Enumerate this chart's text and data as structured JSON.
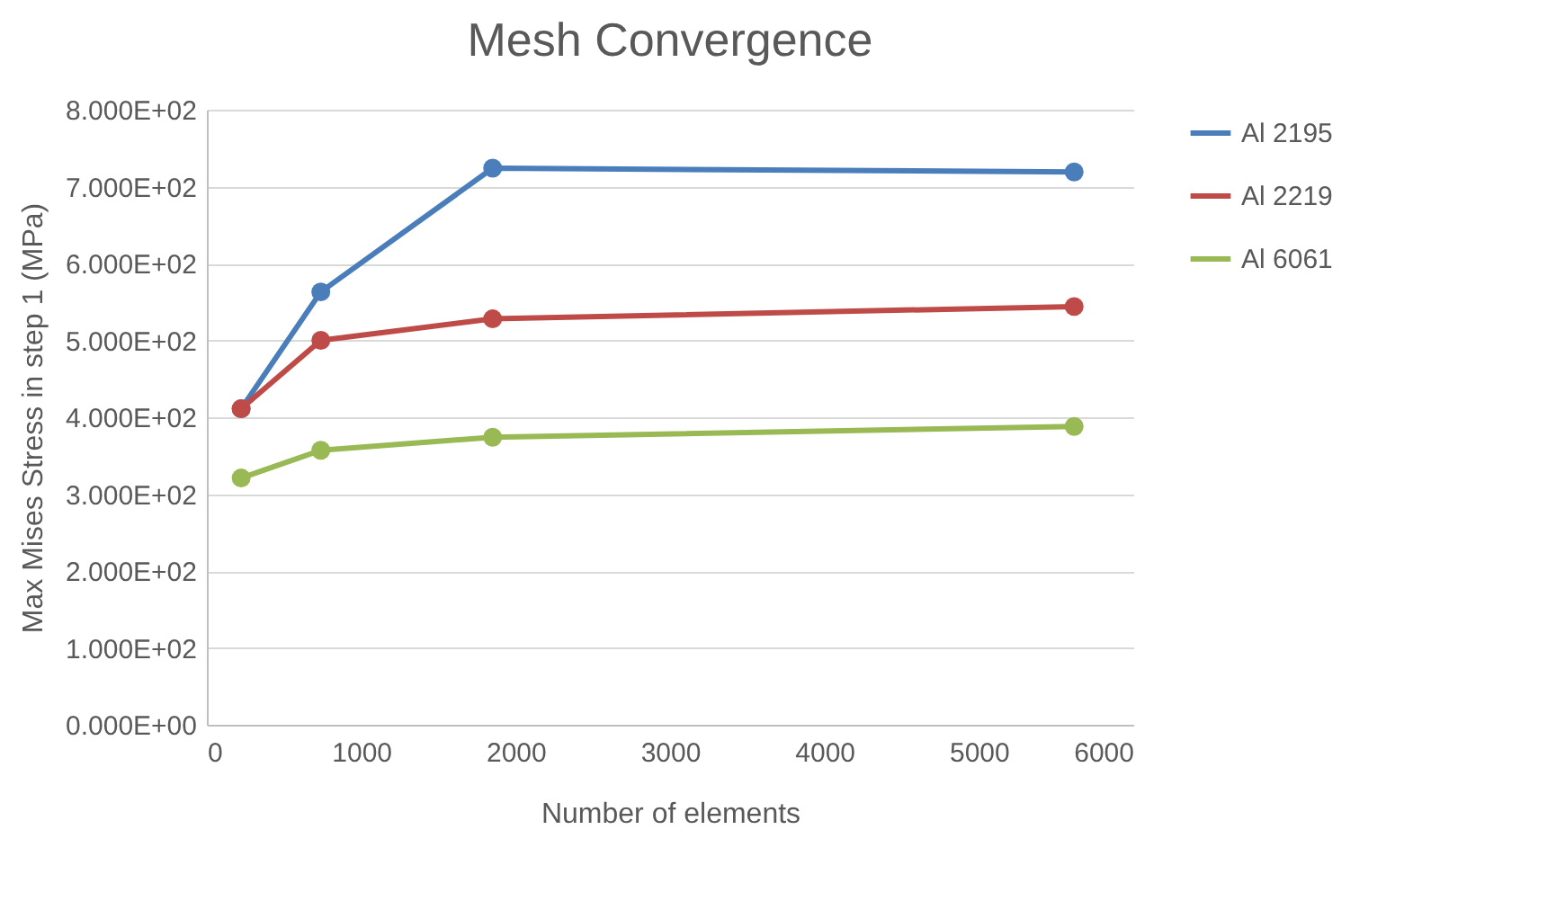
{
  "chart_data": {
    "type": "line",
    "title": "Mesh Convergence",
    "xlabel": "Number of elements",
    "ylabel": "Max Mises Stress in step 1 (MPa)",
    "x": [
      222,
      738,
      1851,
      5617
    ],
    "series": [
      {
        "name": "Al 2195",
        "color": "#4a7ebb",
        "values": [
          411,
          563,
          724,
          719
        ]
      },
      {
        "name": "Al 2219",
        "color": "#be4b48",
        "values": [
          411,
          500,
          528,
          544
        ]
      },
      {
        "name": "Al 6061",
        "color": "#98b954",
        "values": [
          321,
          357,
          374,
          388
        ]
      }
    ],
    "xlim": [
      0,
      6000
    ],
    "xticks": [
      0,
      1000,
      2000,
      3000,
      4000,
      5000,
      6000
    ],
    "ylim": [
      0,
      800
    ],
    "yticks": [
      {
        "value": 0,
        "label": "0.000E+00"
      },
      {
        "value": 100,
        "label": "1.000E+02"
      },
      {
        "value": 200,
        "label": "2.000E+02"
      },
      {
        "value": 300,
        "label": "3.000E+02"
      },
      {
        "value": 400,
        "label": "4.000E+02"
      },
      {
        "value": 500,
        "label": "5.000E+02"
      },
      {
        "value": 600,
        "label": "6.000E+02"
      },
      {
        "value": 700,
        "label": "7.000E+02"
      },
      {
        "value": 800,
        "label": "8.000E+02"
      }
    ],
    "grid": "y",
    "legend": "right",
    "marker": "circle",
    "line_style": "solid"
  }
}
